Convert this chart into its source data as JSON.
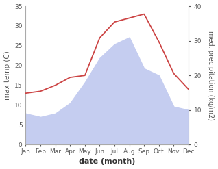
{
  "months": [
    "Jan",
    "Feb",
    "Mar",
    "Apr",
    "May",
    "Jun",
    "Jul",
    "Aug",
    "Sep",
    "Oct",
    "Nov",
    "Dec"
  ],
  "temperature": [
    13,
    13.5,
    15,
    17,
    17.5,
    27,
    31,
    32,
    33,
    26,
    18,
    14
  ],
  "precipitation": [
    9,
    8,
    9,
    12,
    18,
    25,
    29,
    31,
    22,
    20,
    11,
    10
  ],
  "temp_ylim": [
    0,
    35
  ],
  "precip_ylim": [
    0,
    40
  ],
  "temp_color": "#cc4444",
  "precip_color": "#c5cdf0",
  "xlabel": "date (month)",
  "ylabel_left": "max temp (C)",
  "ylabel_right": "med. precipitation (kg/m2)",
  "bg_color": "#ffffff",
  "tick_fontsize": 6.5,
  "label_fontsize": 7.5,
  "xlabel_fontsize": 8
}
